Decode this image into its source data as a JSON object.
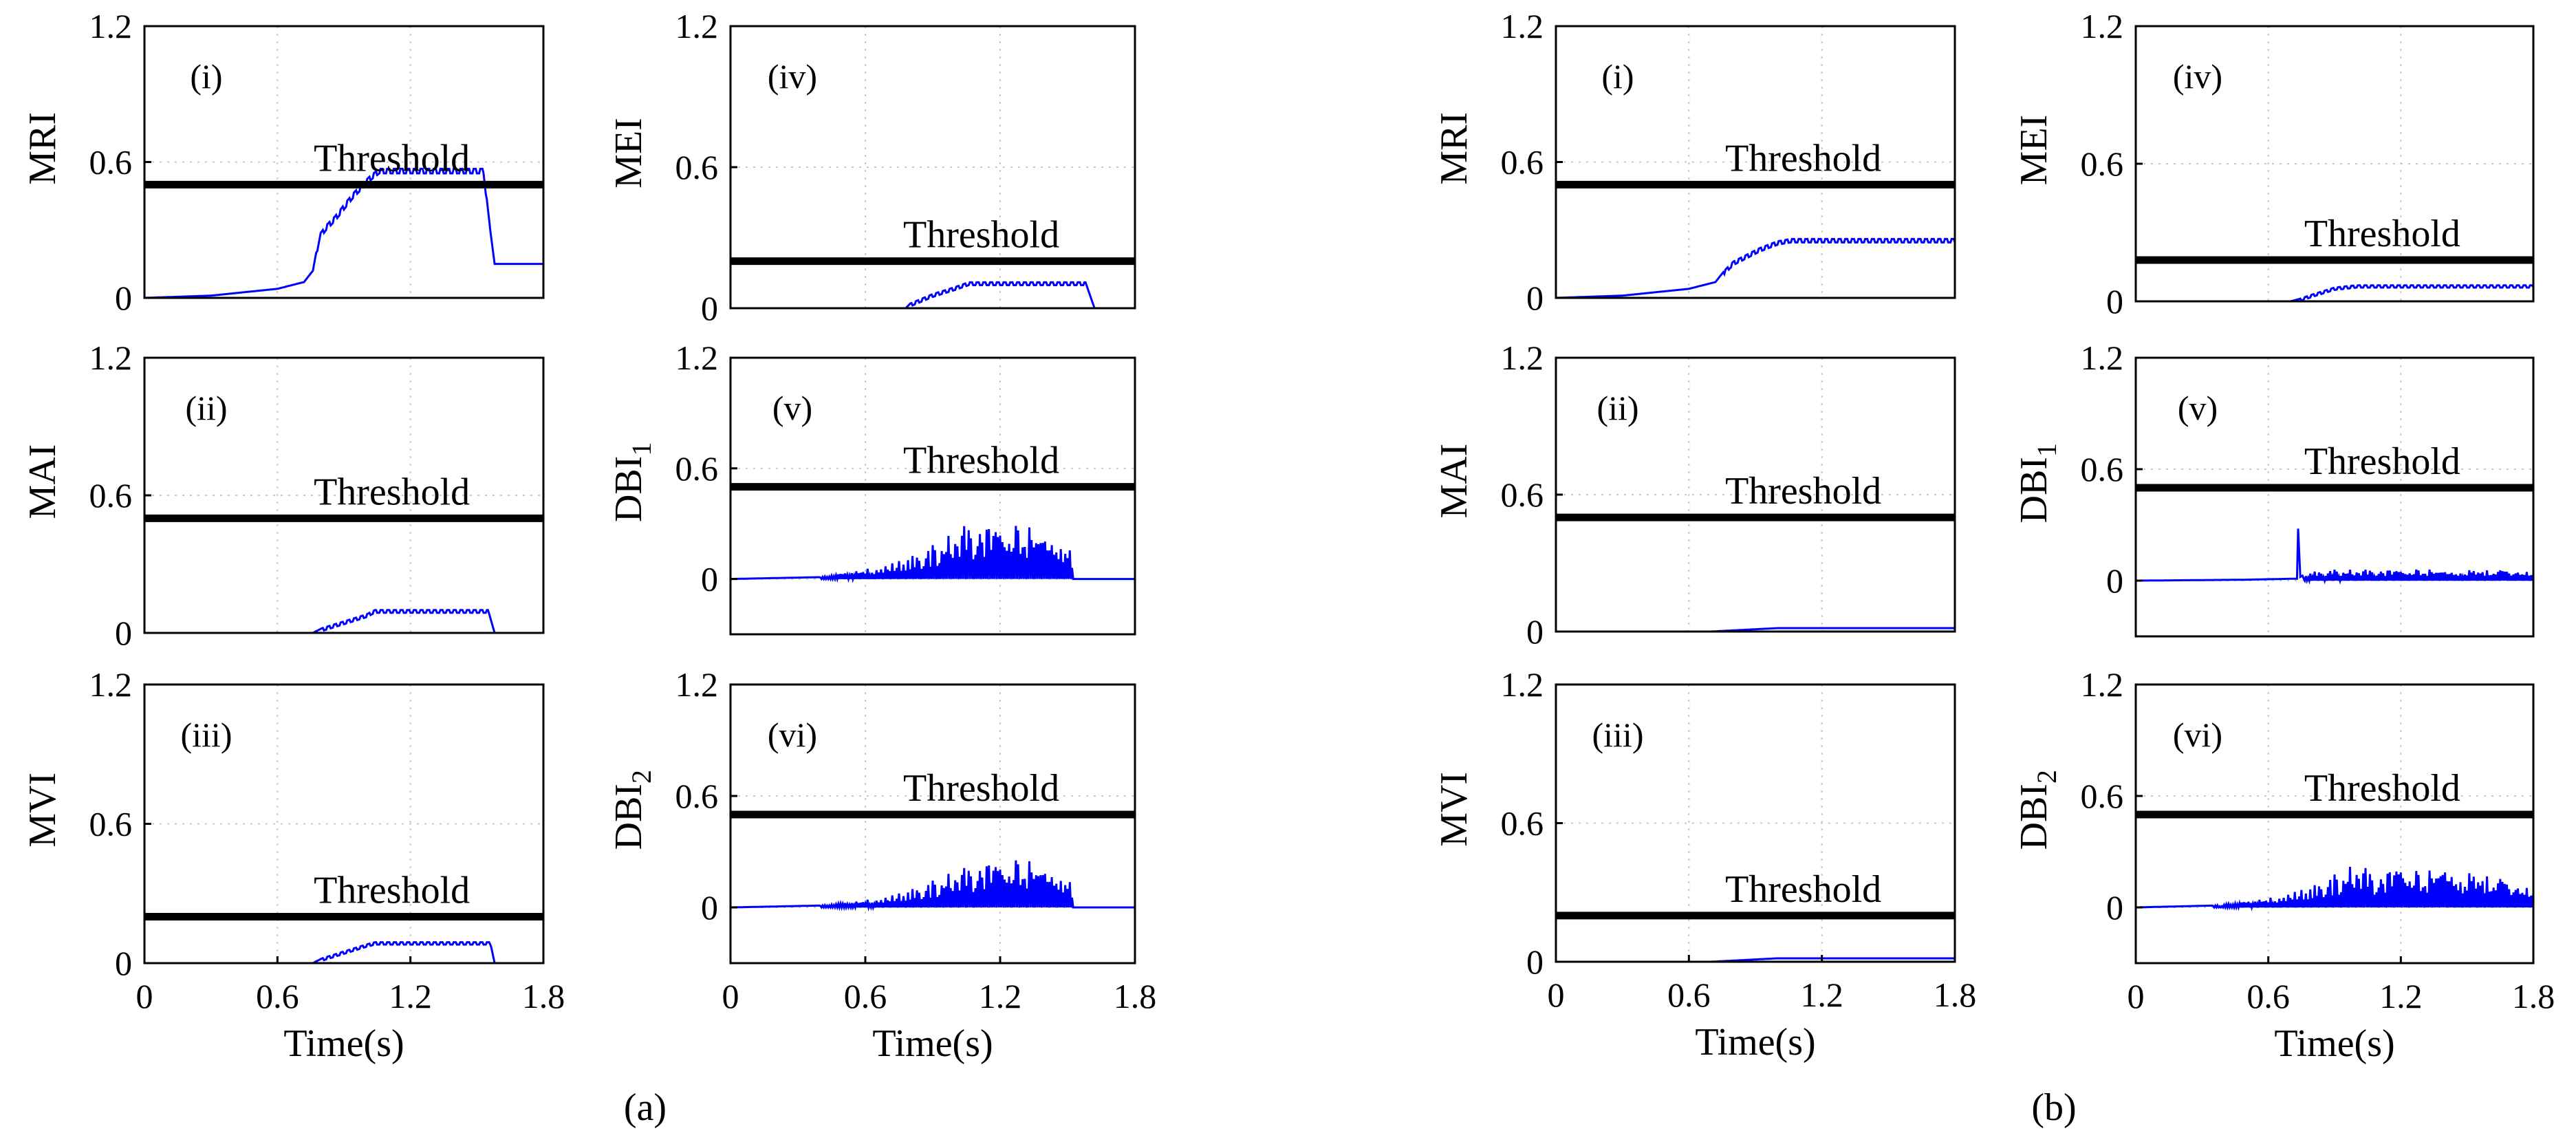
{
  "figure_labels": [
    "(a)",
    "(b)"
  ],
  "chart_data": [
    {
      "group": "(a)",
      "panel": "(i)",
      "type": "line",
      "ylabel": "MRI",
      "xlabel": "",
      "ylim": [
        0,
        1.2
      ],
      "yticks": [
        "0",
        "0.6",
        "1.2"
      ],
      "xlim": [
        0,
        1.8
      ],
      "xticks": [],
      "threshold": 0.5,
      "threshold_label": "Threshold",
      "tag": "(i)",
      "series": [
        {
          "name": "signal",
          "color": "#0000ff",
          "x": [
            0,
            0.3,
            0.6,
            0.72,
            0.76,
            0.79,
            0.82,
            0.86,
            0.9,
            0.94,
            0.98,
            1.02,
            1.06,
            1.2,
            1.4,
            1.53,
            1.56,
            1.58,
            1.8
          ],
          "y": [
            0,
            0.01,
            0.04,
            0.07,
            0.12,
            0.28,
            0.32,
            0.36,
            0.41,
            0.46,
            0.5,
            0.54,
            0.57,
            0.57,
            0.57,
            0.57,
            0.3,
            0.15,
            0.15
          ],
          "ripple": 0.02,
          "ripple_from": 0.78,
          "ripple_to": 1.55
        }
      ]
    },
    {
      "group": "(a)",
      "panel": "(iv)",
      "type": "line",
      "ylabel": "MEI",
      "xlabel": "",
      "ylim": [
        0,
        1.2
      ],
      "yticks": [
        "0",
        "0.6",
        "1.2"
      ],
      "xlim": [
        0,
        1.8
      ],
      "xticks": [],
      "threshold": 0.2,
      "threshold_label": "Threshold",
      "tag": "(iv)",
      "series": [
        {
          "name": "signal",
          "color": "#0000ff",
          "x": [
            0,
            0.78,
            0.8,
            0.9,
            1.0,
            1.06,
            1.2,
            1.4,
            1.58,
            1.62,
            1.8
          ],
          "y": [
            0,
            0,
            0.02,
            0.06,
            0.09,
            0.11,
            0.11,
            0.11,
            0.11,
            0,
            0
          ],
          "ripple": 0.012,
          "ripple_from": 0.8,
          "ripple_to": 1.58
        }
      ]
    },
    {
      "group": "(a)",
      "panel": "(ii)",
      "type": "line",
      "ylabel": "MAI",
      "xlabel": "",
      "ylim": [
        0,
        1.2
      ],
      "yticks": [
        "0",
        "0.6",
        "1.2"
      ],
      "xlim": [
        0,
        1.8
      ],
      "xticks": [],
      "threshold": 0.5,
      "threshold_label": "Threshold",
      "tag": "(ii)",
      "series": [
        {
          "name": "signal",
          "color": "#0000ff",
          "x": [
            0,
            0.76,
            0.8,
            0.9,
            1.0,
            1.04,
            1.2,
            1.4,
            1.55,
            1.58,
            1.8
          ],
          "y": [
            0,
            0,
            0.02,
            0.05,
            0.08,
            0.1,
            0.1,
            0.1,
            0.1,
            0,
            0
          ],
          "ripple": 0.012,
          "ripple_from": 0.8,
          "ripple_to": 1.55
        }
      ]
    },
    {
      "group": "(a)",
      "panel": "(v)",
      "type": "line",
      "ylabel": "DBI",
      "ylabel_sub": "1",
      "xlabel": "",
      "ylim": [
        -0.3,
        1.2
      ],
      "yticks": [
        "0",
        "0.6",
        "1.2"
      ],
      "xlim": [
        0,
        1.8
      ],
      "xticks": [],
      "threshold": 0.5,
      "threshold_label": "Threshold",
      "tag": "(v)",
      "series": [
        {
          "name": "signal",
          "color": "#0000ff",
          "x": [
            0,
            0.4,
            0.55,
            0.7,
            0.85,
            1.0,
            1.05,
            1.2,
            1.35,
            1.5,
            1.53,
            1.8
          ],
          "y": [
            0,
            0.01,
            0.04,
            0.08,
            0.15,
            0.26,
            0.3,
            0.3,
            0.28,
            0.25,
            0,
            0
          ],
          "spiky": true,
          "spike_from": 0.4,
          "spike_to": 1.53
        }
      ]
    },
    {
      "group": "(a)",
      "panel": "(iii)",
      "type": "line",
      "ylabel": "MVI",
      "xlabel": "Time(s)",
      "ylim": [
        0,
        1.2
      ],
      "yticks": [
        "0",
        "0.6",
        "1.2"
      ],
      "xlim": [
        0,
        1.8
      ],
      "xticks": [
        "0",
        "0.6",
        "1.2",
        "1.8"
      ],
      "threshold": 0.2,
      "threshold_label": "Threshold",
      "tag": "(iii)",
      "series": [
        {
          "name": "signal",
          "color": "#0000ff",
          "x": [
            0,
            0.76,
            0.8,
            0.9,
            1.0,
            1.04,
            1.2,
            1.4,
            1.56,
            1.58,
            1.8
          ],
          "y": [
            0,
            0,
            0.02,
            0.05,
            0.08,
            0.09,
            0.09,
            0.09,
            0.09,
            0,
            0
          ],
          "ripple": 0.01,
          "ripple_from": 0.8,
          "ripple_to": 1.56
        }
      ]
    },
    {
      "group": "(a)",
      "panel": "(vi)",
      "type": "line",
      "ylabel": "DBI",
      "ylabel_sub": "2",
      "xlabel": "Time(s)",
      "ylim": [
        -0.3,
        1.2
      ],
      "yticks": [
        "0",
        "0.6",
        "1.2"
      ],
      "xlim": [
        0,
        1.8
      ],
      "xticks": [
        "0",
        "0.6",
        "1.2",
        "1.8"
      ],
      "threshold": 0.5,
      "threshold_label": "Threshold",
      "tag": "(vi)",
      "series": [
        {
          "name": "signal",
          "color": "#0000ff",
          "x": [
            0,
            0.4,
            0.55,
            0.7,
            0.85,
            1.0,
            1.1,
            1.2,
            1.35,
            1.5,
            1.53,
            1.8
          ],
          "y": [
            0,
            0.01,
            0.03,
            0.06,
            0.12,
            0.2,
            0.24,
            0.26,
            0.25,
            0.22,
            0,
            0
          ],
          "spiky": true,
          "spike_from": 0.4,
          "spike_to": 1.53
        }
      ]
    },
    {
      "group": "(b)",
      "panel": "(i)",
      "type": "line",
      "ylabel": "MRI",
      "xlabel": "",
      "ylim": [
        0,
        1.2
      ],
      "yticks": [
        "0",
        "0.6",
        "1.2"
      ],
      "xlim": [
        0,
        1.8
      ],
      "xticks": [],
      "threshold": 0.5,
      "threshold_label": "Threshold",
      "tag": "(i)",
      "series": [
        {
          "name": "signal",
          "color": "#0000ff",
          "x": [
            0,
            0.3,
            0.6,
            0.72,
            0.76,
            0.8,
            0.86,
            0.92,
            1.0,
            1.06,
            1.2,
            1.5,
            1.8
          ],
          "y": [
            0,
            0.01,
            0.04,
            0.07,
            0.12,
            0.16,
            0.19,
            0.22,
            0.25,
            0.26,
            0.26,
            0.26,
            0.26
          ],
          "ripple": 0.015,
          "ripple_from": 0.76,
          "ripple_to": 1.8
        }
      ]
    },
    {
      "group": "(b)",
      "panel": "(iv)",
      "type": "line",
      "ylabel": "MEI",
      "xlabel": "",
      "ylim": [
        0,
        1.2
      ],
      "yticks": [
        "0",
        "0.6",
        "1.2"
      ],
      "xlim": [
        0,
        1.8
      ],
      "xticks": [],
      "threshold": 0.18,
      "threshold_label": "Threshold",
      "tag": "(iv)",
      "series": [
        {
          "name": "signal",
          "color": "#0000ff",
          "x": [
            0,
            0.7,
            0.74,
            0.8,
            0.9,
            1.0,
            1.2,
            1.5,
            1.8
          ],
          "y": [
            0,
            0,
            0.01,
            0.03,
            0.06,
            0.07,
            0.07,
            0.07,
            0.07
          ],
          "ripple": 0.01,
          "ripple_from": 0.74,
          "ripple_to": 1.8
        }
      ]
    },
    {
      "group": "(b)",
      "panel": "(ii)",
      "type": "line",
      "ylabel": "MAI",
      "xlabel": "",
      "ylim": [
        0,
        1.2
      ],
      "yticks": [
        "0",
        "0.6",
        "1.2"
      ],
      "xlim": [
        0,
        1.8
      ],
      "xticks": [],
      "threshold": 0.5,
      "threshold_label": "Threshold",
      "tag": "(ii)",
      "series": [
        {
          "name": "signal",
          "color": "#0000ff",
          "x": [
            0,
            0.7,
            0.8,
            0.9,
            1.0,
            1.2,
            1.5,
            1.8
          ],
          "y": [
            0,
            0,
            0.005,
            0.01,
            0.015,
            0.015,
            0.015,
            0.015
          ]
        }
      ]
    },
    {
      "group": "(b)",
      "panel": "(v)",
      "type": "line",
      "ylabel": "DBI",
      "ylabel_sub": "1",
      "xlabel": "",
      "ylim": [
        -0.3,
        1.2
      ],
      "yticks": [
        "0",
        "0.6",
        "1.2"
      ],
      "xlim": [
        0,
        1.8
      ],
      "xticks": [],
      "threshold": 0.5,
      "threshold_label": "Threshold",
      "tag": "(v)",
      "series": [
        {
          "name": "signal",
          "color": "#0000ff",
          "x": [
            0,
            0.5,
            0.7,
            0.73,
            0.735,
            0.745,
            0.76,
            0.8,
            0.9,
            1.0,
            1.2,
            1.5,
            1.8
          ],
          "y": [
            0,
            0.005,
            0.01,
            0.01,
            0.28,
            0.02,
            0.03,
            0.05,
            0.06,
            0.06,
            0.06,
            0.06,
            0.06
          ],
          "spiky": true,
          "spike_from": 0.76,
          "spike_to": 1.8
        }
      ]
    },
    {
      "group": "(b)",
      "panel": "(iii)",
      "type": "line",
      "ylabel": "MVI",
      "xlabel": "Time(s)",
      "ylim": [
        0,
        1.2
      ],
      "yticks": [
        "0",
        "0.6",
        "1.2"
      ],
      "xlim": [
        0,
        1.8
      ],
      "xticks": [
        "0",
        "0.6",
        "1.2",
        "1.8"
      ],
      "threshold": 0.2,
      "threshold_label": "Threshold",
      "tag": "(iii)",
      "series": [
        {
          "name": "signal",
          "color": "#0000ff",
          "x": [
            0,
            0.7,
            0.8,
            0.9,
            1.0,
            1.2,
            1.5,
            1.8
          ],
          "y": [
            0,
            0,
            0.005,
            0.01,
            0.015,
            0.015,
            0.015,
            0.015
          ]
        }
      ]
    },
    {
      "group": "(b)",
      "panel": "(vi)",
      "type": "line",
      "ylabel": "DBI",
      "ylabel_sub": "2",
      "xlabel": "Time(s)",
      "ylim": [
        -0.3,
        1.2
      ],
      "yticks": [
        "0",
        "0.6",
        "1.2"
      ],
      "xlim": [
        0,
        1.8
      ],
      "xticks": [
        "0",
        "0.6",
        "1.2",
        "1.8"
      ],
      "threshold": 0.5,
      "threshold_label": "Threshold",
      "tag": "(vi)",
      "series": [
        {
          "name": "signal",
          "color": "#0000ff",
          "x": [
            0,
            0.35,
            0.5,
            0.6,
            0.7,
            0.8,
            0.9,
            1.0,
            1.1,
            1.2,
            1.3,
            1.4,
            1.5,
            1.6,
            1.7,
            1.8
          ],
          "y": [
            0,
            0.01,
            0.03,
            0.05,
            0.08,
            0.12,
            0.18,
            0.24,
            0.18,
            0.24,
            0.18,
            0.25,
            0.2,
            0.18,
            0.15,
            0.13
          ],
          "spiky": true,
          "spike_from": 0.35,
          "spike_to": 1.8
        }
      ]
    }
  ]
}
